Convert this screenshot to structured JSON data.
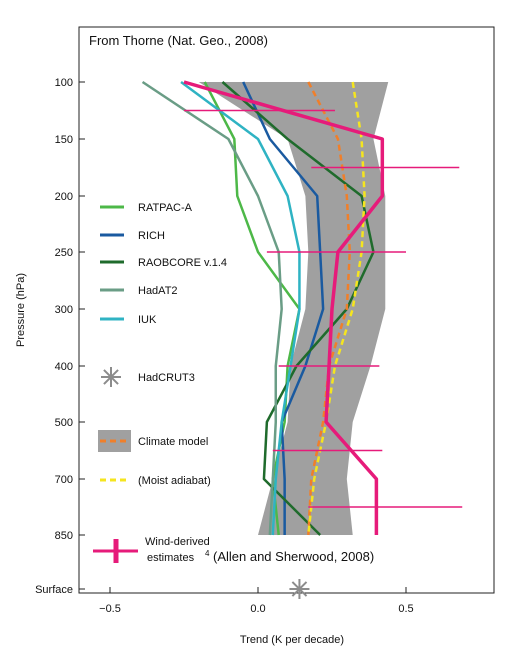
{
  "chart_data": {
    "type": "line",
    "title": "",
    "annotation": "From Thorne (Nat. Geo., 2008)",
    "xlabel": "Trend (K per decade)",
    "ylabel": "Pressure (hPa)",
    "xlim": [
      -0.72,
      0.8
    ],
    "x_ticks": [
      -0.5,
      0.0,
      0.5
    ],
    "x_tick_labels": [
      "−0.5",
      "0.0",
      "0.5"
    ],
    "y_levels": [
      100,
      150,
      200,
      250,
      300,
      400,
      500,
      700,
      850
    ],
    "y_tick_labels": [
      "100",
      "150",
      "200",
      "250",
      "300",
      "400",
      "500",
      "700",
      "850",
      "Surface"
    ],
    "surface_label": "Surface",
    "series": [
      {
        "name": "RATPAC-A",
        "color": "#4db848",
        "style": "solid",
        "pressure": [
          100,
          150,
          200,
          250,
          300,
          400,
          500,
          700,
          850
        ],
        "values": [
          -0.18,
          -0.08,
          -0.07,
          0.0,
          0.14,
          0.1,
          0.09,
          0.05,
          0.07
        ]
      },
      {
        "name": "RICH",
        "color": "#1a5aa0",
        "style": "solid",
        "pressure": [
          100,
          150,
          200,
          250,
          300,
          400,
          500,
          700,
          850
        ],
        "values": [
          -0.05,
          0.04,
          0.2,
          0.21,
          0.22,
          0.16,
          0.08,
          0.09,
          0.09
        ]
      },
      {
        "name": "RAOBCORE v.1.4",
        "color": "#1f6b2c",
        "style": "solid",
        "pressure": [
          100,
          150,
          200,
          250,
          300,
          400,
          500,
          700,
          850
        ],
        "values": [
          -0.12,
          0.1,
          0.35,
          0.39,
          0.3,
          0.13,
          0.03,
          0.02,
          0.21
        ]
      },
      {
        "name": "HadAT2",
        "color": "#6a9d86",
        "style": "solid",
        "pressure": [
          100,
          150,
          200,
          250,
          300,
          400,
          500,
          700,
          850
        ],
        "values": [
          -0.39,
          -0.1,
          0.0,
          0.07,
          0.08,
          0.06,
          0.06,
          0.05,
          0.04
        ]
      },
      {
        "name": "IUK",
        "color": "#2fb3c3",
        "style": "solid",
        "pressure": [
          100,
          150,
          200,
          250,
          300,
          400,
          500,
          700,
          850
        ],
        "values": [
          -0.26,
          0.0,
          0.1,
          0.14,
          0.14,
          0.11,
          0.08,
          0.06,
          0.05
        ]
      },
      {
        "name": "Climate model",
        "color": "#f07f2a",
        "style": "dashed",
        "pressure": [
          100,
          150,
          200,
          250,
          300,
          400,
          500,
          700,
          850
        ],
        "values": [
          0.17,
          0.27,
          0.3,
          0.31,
          0.3,
          0.24,
          0.22,
          0.18,
          0.17
        ]
      },
      {
        "name": "(Moist adiabat)",
        "color": "#f5e51f",
        "style": "dashed",
        "pressure": [
          100,
          150,
          200,
          250,
          300,
          400,
          500,
          700,
          850
        ],
        "values": [
          0.32,
          0.35,
          0.36,
          0.35,
          0.32,
          0.26,
          0.23,
          0.19,
          0.17
        ]
      },
      {
        "name": "Wind-derived estimates",
        "color": "#e61b7a",
        "style": "solid-thick",
        "pressure": [
          100,
          150,
          200,
          250,
          300,
          400,
          500,
          700,
          850
        ],
        "values": [
          -0.25,
          0.42,
          0.42,
          0.27,
          0.25,
          0.24,
          0.23,
          0.4,
          0.4
        ],
        "error_bars": [
          {
            "pressure": 125,
            "value": -0.06,
            "low": -0.25,
            "high": 0.26
          },
          {
            "pressure": 175,
            "value": 0.42,
            "low": 0.18,
            "high": 0.68
          },
          {
            "pressure": 250,
            "value": 0.27,
            "low": 0.03,
            "high": 0.5
          },
          {
            "pressure": 400,
            "value": 0.24,
            "low": 0.07,
            "high": 0.41
          },
          {
            "pressure": 600,
            "value": 0.23,
            "low": 0.05,
            "high": 0.42
          },
          {
            "pressure": 775,
            "value": 0.4,
            "low": 0.17,
            "high": 0.69
          }
        ]
      },
      {
        "name": "HadCRUT3",
        "color": "#8c8c8c",
        "style": "marker-asterisk",
        "pressure": [
          "Surface"
        ],
        "values": [
          0.14
        ]
      }
    ],
    "model_range": {
      "name": "Climate model",
      "color": "#a0a0a0",
      "pressure": [
        100,
        150,
        200,
        250,
        300,
        400,
        500,
        700,
        850
      ],
      "low": [
        -0.2,
        0.1,
        0.16,
        0.17,
        0.16,
        0.11,
        0.1,
        0.05,
        0.0
      ],
      "high": [
        0.44,
        0.39,
        0.43,
        0.43,
        0.43,
        0.38,
        0.32,
        0.3,
        0.32
      ]
    },
    "legend": {
      "placement": "left",
      "entries": [
        {
          "label": "RATPAC-A",
          "color": "#4db848",
          "symbol": "line"
        },
        {
          "label": "RICH",
          "color": "#1a5aa0",
          "symbol": "line"
        },
        {
          "label": "RAOBCORE v.1.4",
          "color": "#1f6b2c",
          "symbol": "line"
        },
        {
          "label": "HadAT2",
          "color": "#6a9d86",
          "symbol": "line"
        },
        {
          "label": "IUK",
          "color": "#2fb3c3",
          "symbol": "line"
        },
        {
          "label": "HadCRUT3",
          "color": "#8c8c8c",
          "symbol": "asterisk"
        },
        {
          "label": "Climate model",
          "color": "#f07f2a",
          "symbol": "box-dashed"
        },
        {
          "label": "(Moist adiabat)",
          "color": "#f5e51f",
          "symbol": "dashed"
        },
        {
          "label": "Wind-derived",
          "label2": "estimates",
          "superscript": "4",
          "citation": "(Allen and Sherwood, 2008)",
          "color": "#e61b7a",
          "symbol": "error-bar"
        }
      ]
    }
  }
}
